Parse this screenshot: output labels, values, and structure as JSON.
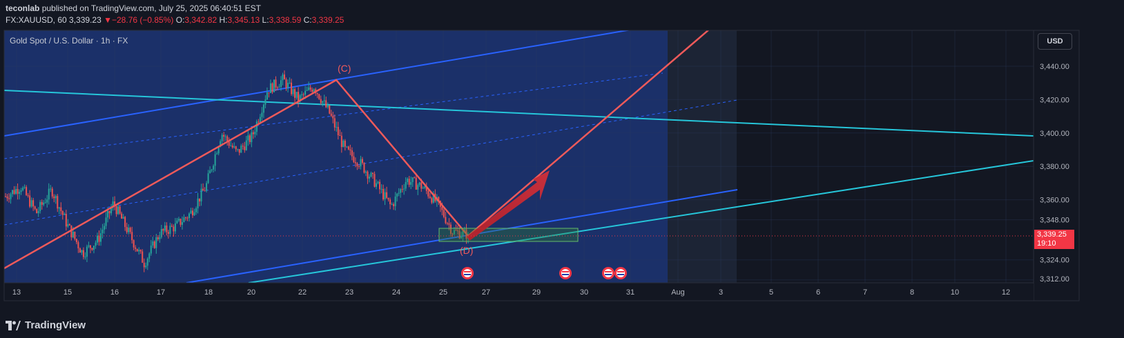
{
  "header": {
    "author": "teconlab",
    "published_text": "published on TradingView.com, July 25, 2025 06:40:51 EST",
    "symbol": "FX:XAUUSD, 60",
    "last": "3,339.23",
    "change_arrow": "▼",
    "change": "−28.76 (−0.85%)",
    "o_label": "O:",
    "o_value": "3,342.82",
    "h_label": "H:",
    "h_value": "3,345.13",
    "l_label": "L:",
    "l_value": "3,338.59",
    "c_label": "C:",
    "c_value": "3,339.25"
  },
  "symbol_label": "Gold Spot / U.S. Dollar · 1h · FX",
  "currency_button": "USD",
  "price_tag": {
    "price": "3,339.25",
    "countdown": "19:10"
  },
  "footer": {
    "brand": "TradingView"
  },
  "colors": {
    "background": "#131722",
    "highlight": "#1d3371",
    "red": "#f23645",
    "channel_blue": "#2962ff",
    "cyan": "#26c6da",
    "candle_up": "#26a69a",
    "candle_down": "#ef5350"
  },
  "chart_data": {
    "type": "candlestick",
    "instrument": "Gold Spot / U.S. Dollar",
    "interval": "1h",
    "y_axis": {
      "ticks": [
        "3,440.00",
        "3,420.00",
        "3,400.00",
        "3,380.00",
        "3,360.00",
        "3,348.00",
        "3,324.00",
        "3,312.00"
      ],
      "tick_values": [
        3440,
        3420,
        3400,
        3380,
        3360,
        3348,
        3324,
        3312
      ],
      "range": [
        3309,
        3458
      ]
    },
    "x_axis": {
      "ticks": [
        "13",
        "15",
        "16",
        "17",
        "18",
        "20",
        "22",
        "23",
        "24",
        "25",
        "27",
        "29",
        "30",
        "31",
        "Aug",
        "3",
        "5",
        "6",
        "7",
        "8",
        "10",
        "12"
      ]
    },
    "price_path": [
      {
        "date": "Jul 11",
        "price": 3362
      },
      {
        "date": "Jul 13",
        "price": 3368
      },
      {
        "date": "Jul 14",
        "price": 3352
      },
      {
        "date": "Jul 15",
        "price": 3366
      },
      {
        "date": "Jul 15",
        "price": 3345
      },
      {
        "date": "Jul 16",
        "price": 3328
      },
      {
        "date": "Jul 16",
        "price": 3336
      },
      {
        "date": "Jul 17",
        "price": 3358
      },
      {
        "date": "Jul 17",
        "price": 3340
      },
      {
        "date": "Jul 17",
        "price": 3322
      },
      {
        "date": "Jul 18",
        "price": 3340
      },
      {
        "date": "Jul 18",
        "price": 3344
      },
      {
        "date": "Jul 20",
        "price": 3352
      },
      {
        "date": "Jul 20",
        "price": 3368
      },
      {
        "date": "Jul 21",
        "price": 3400
      },
      {
        "date": "Jul 22",
        "price": 3388
      },
      {
        "date": "Jul 22",
        "price": 3398
      },
      {
        "date": "Jul 22",
        "price": 3426
      },
      {
        "date": "Jul 23",
        "price": 3432
      },
      {
        "date": "Jul 23",
        "price": 3420
      },
      {
        "date": "Jul 23",
        "price": 3428
      },
      {
        "date": "Jul 23",
        "price": 3412
      },
      {
        "date": "Jul 24",
        "price": 3390
      },
      {
        "date": "Jul 24",
        "price": 3382
      },
      {
        "date": "Jul 24",
        "price": 3370
      },
      {
        "date": "Jul 24",
        "price": 3356
      },
      {
        "date": "Jul 25",
        "price": 3372
      },
      {
        "date": "Jul 25",
        "price": 3368
      },
      {
        "date": "Jul 25",
        "price": 3358
      },
      {
        "date": "Jul 25",
        "price": 3341
      },
      {
        "date": "Jul 25",
        "price": 3339.25
      }
    ],
    "annotations": [
      "(C)",
      "(D)"
    ],
    "current_price": 3339.25,
    "event_markers": 4
  }
}
